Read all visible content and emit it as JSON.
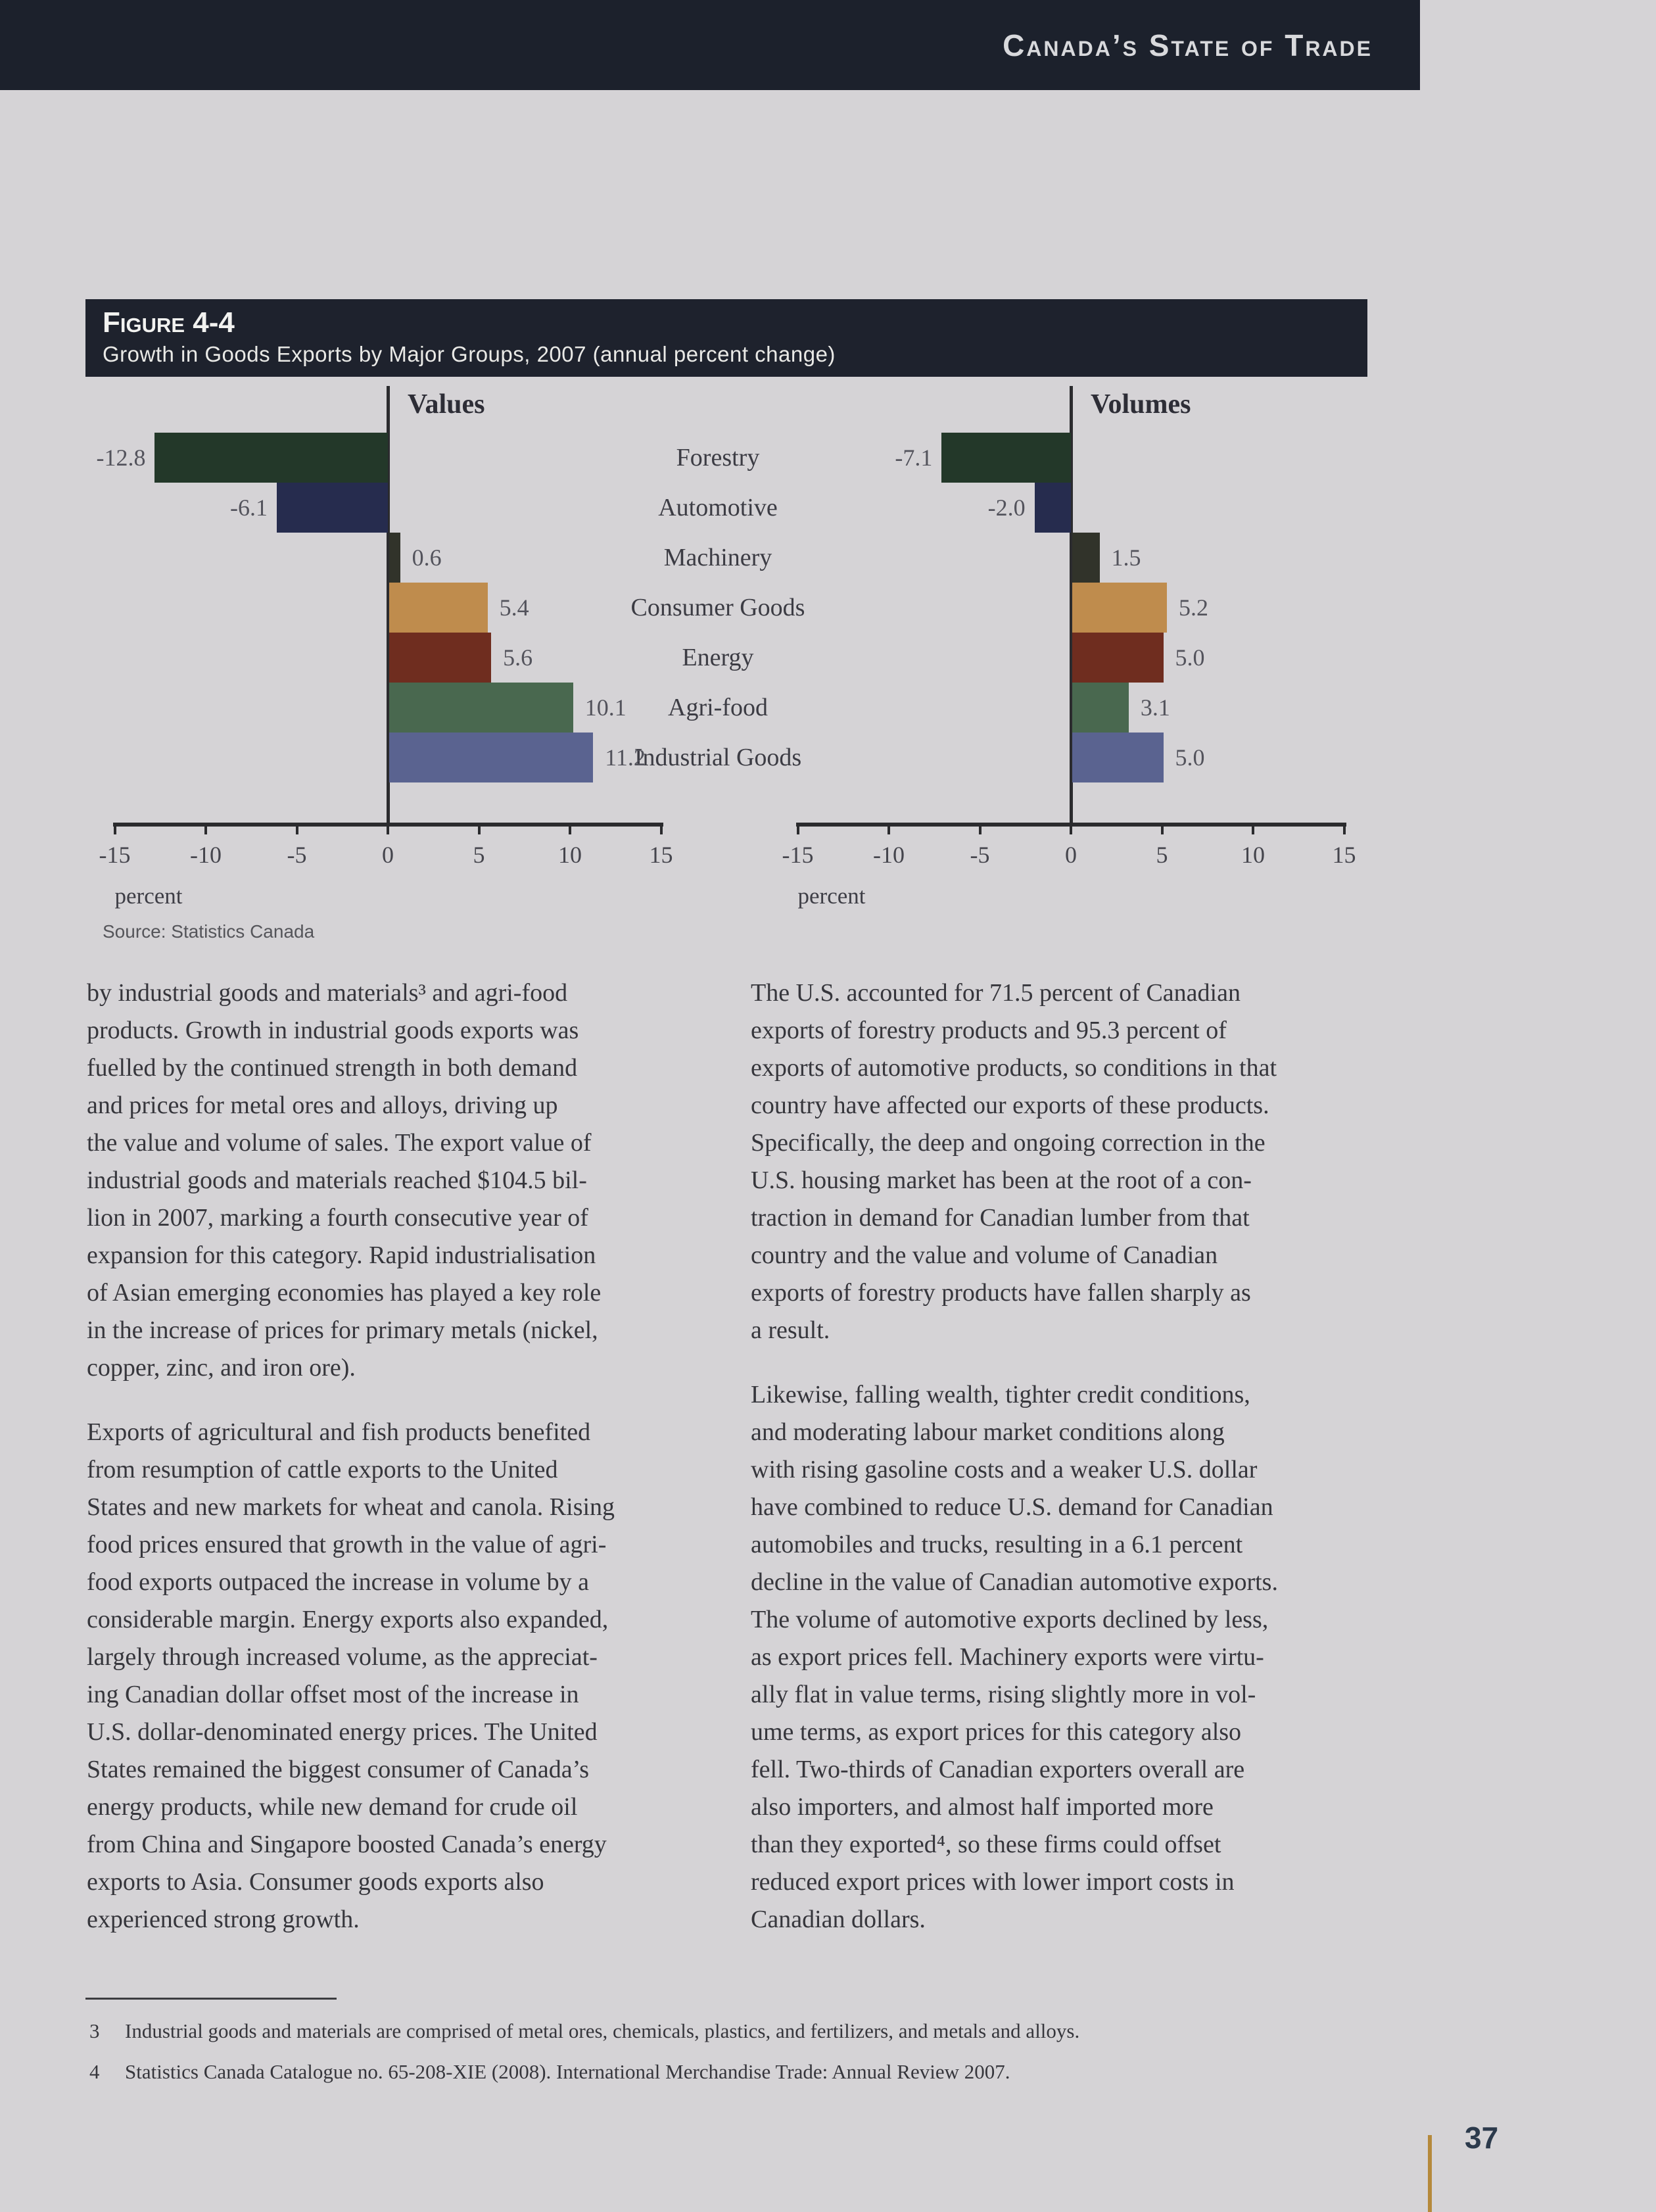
{
  "header": {
    "title": "Canada’s State of Trade"
  },
  "figure": {
    "label": "Figure 4-4",
    "subtitle": "Growth in Goods Exports by Major Groups, 2007 (annual percent change)",
    "source": "Source: Statistics Canada"
  },
  "chart_data": {
    "type": "bar",
    "orientation": "horizontal",
    "categories": [
      "Forestry",
      "Automotive",
      "Machinery",
      "Consumer Goods",
      "Energy",
      "Agri-food",
      "Industrial Goods"
    ],
    "series": [
      {
        "name": "Values",
        "values": [
          -12.8,
          -6.1,
          0.6,
          5.4,
          5.6,
          10.1,
          11.2
        ]
      },
      {
        "name": "Volumes",
        "values": [
          -7.1,
          -2.0,
          1.5,
          5.2,
          5.0,
          3.1,
          5.0
        ]
      }
    ],
    "xlabel": "percent",
    "xlim": [
      -15,
      15
    ],
    "xticks": [
      -15,
      -10,
      -5,
      0,
      5,
      10,
      15
    ],
    "grid": false,
    "legend_position": "chart-titles-above",
    "bar_colors": [
      "#233829",
      "#262c4e",
      "#31332a",
      "#bf8c4d",
      "#6f2d1f",
      "#49684f",
      "#5a6390"
    ]
  },
  "body": {
    "left": {
      "p1": "by industrial goods and materials³ and agri-food\nproducts. Growth in industrial goods exports was\nfuelled by the continued strength in both demand\nand prices for metal ores and alloys, driving up\nthe value and volume of sales. The export value of\nindustrial goods and materials reached $104.5 bil-\nlion in 2007, marking a fourth consecutive year of\nexpansion for this category. Rapid industrialisation\nof Asian emerging economies has played a key role\nin the increase of prices for primary metals (nickel,\ncopper, zinc, and iron ore).",
      "p2": "Exports of agricultural and fish products benefited\nfrom resumption of cattle exports to the United\nStates and new markets for wheat and canola. Rising\nfood prices ensured that growth in the value of agri-\nfood exports outpaced the increase in volume by a\nconsiderable margin. Energy exports also expanded,\nlargely through increased volume, as the appreciat-\ning Canadian dollar offset most of the increase in\nU.S. dollar-denominated energy prices. The United\nStates remained the biggest consumer of Canada’s\nenergy products, while new demand for crude oil\nfrom China and Singapore boosted Canada’s energy\nexports to Asia. Consumer goods exports also\nexperienced strong growth."
    },
    "right": {
      "p1": "The U.S. accounted for 71.5 percent of Canadian\nexports of forestry products and 95.3 percent of\nexports of automotive products, so conditions in that\ncountry have affected our exports of these products.\nSpecifically, the deep and ongoing correction in the\nU.S. housing market has been at the root of a con-\ntraction in demand for Canadian lumber from that\ncountry and the value and volume of Canadian\nexports of forestry products have fallen sharply as\na result.",
      "p2": "Likewise, falling wealth, tighter credit conditions,\nand moderating labour market conditions along\nwith rising gasoline costs and a weaker U.S. dollar\nhave combined to reduce U.S. demand for Canadian\nautomobiles and trucks, resulting in a 6.1 percent\ndecline in the value of Canadian automotive exports.\nThe volume of automotive exports declined by less,\nas export prices fell. Machinery exports were virtu-\nally flat in value terms, rising slightly more in vol-\nume terms, as export prices for this category also\nfell. Two-thirds of Canadian exporters overall are\nalso importers, and almost half imported more\nthan they exported⁴, so these firms could offset\nreduced export prices with lower import costs in\nCanadian dollars."
    }
  },
  "footnotes": {
    "items": [
      {
        "num": "3",
        "text": "Industrial goods and materials are comprised of metal ores, chemicals, plastics, and fertilizers, and metals and alloys."
      },
      {
        "num": "4",
        "text": "Statistics Canada Catalogue no. 65-208-XIE (2008). International Merchandise Trade: Annual Review 2007."
      }
    ]
  },
  "footer": {
    "page_number": "37"
  }
}
